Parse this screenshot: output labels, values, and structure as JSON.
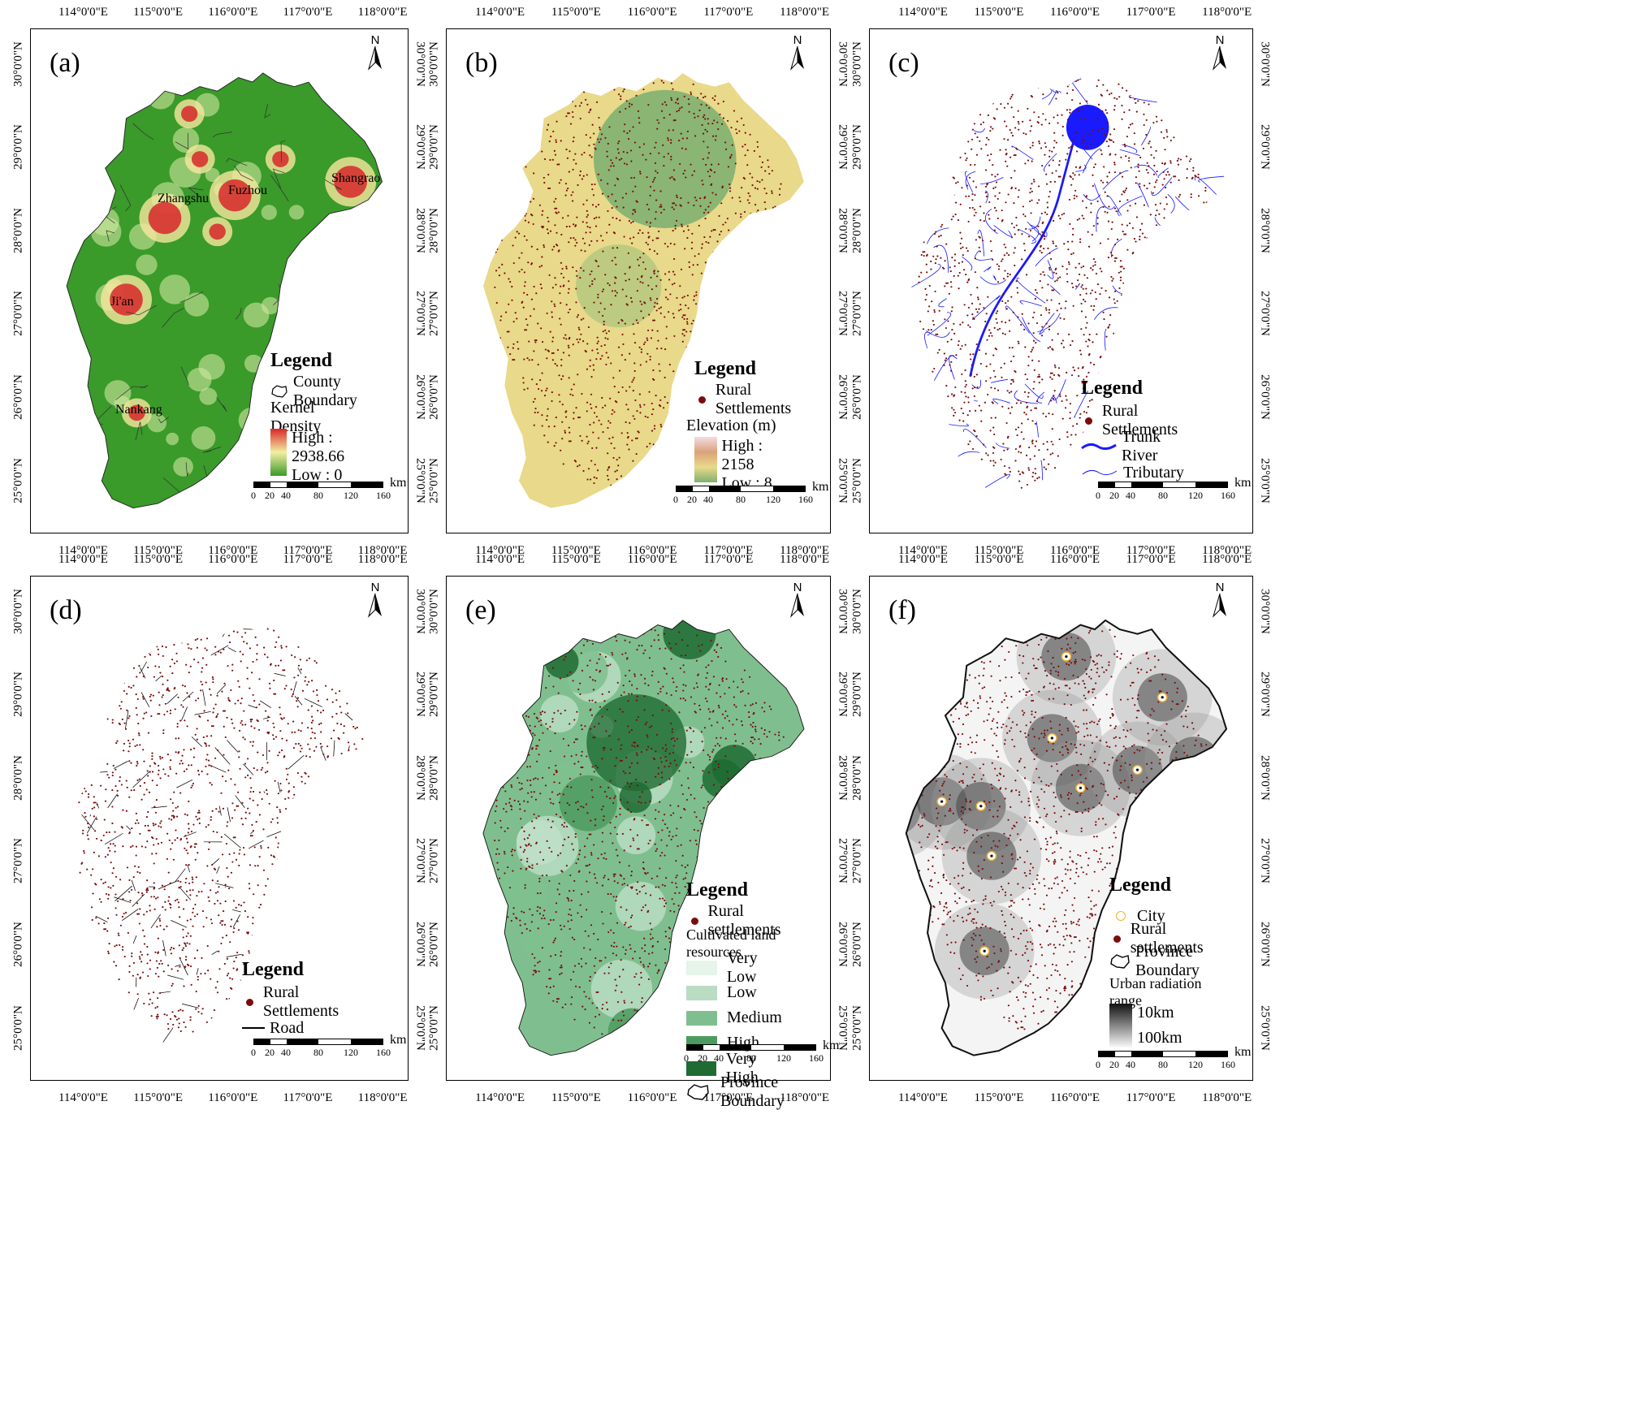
{
  "panels": [
    {
      "label": "(a)",
      "legend": {
        "title": "Legend",
        "items": [
          "County Boundary",
          "Kernel Density"
        ],
        "ramp_high": "High : 2938.66",
        "ramp_low": "Low : 0"
      },
      "places": [
        "Shangrao",
        "Fuzhou",
        "Zhangshu",
        "Ji'an",
        "Nankang"
      ]
    },
    {
      "label": "(b)",
      "legend": {
        "title": "Legend",
        "items": [
          "Rural Settlements",
          "Elevation (m)"
        ],
        "ramp_high": "High : 2158",
        "ramp_low": "Low : 8"
      }
    },
    {
      "label": "(c)",
      "legend": {
        "title": "Legend",
        "items": [
          "Rural Settlements",
          "Trunk River",
          "Tributary"
        ]
      }
    },
    {
      "label": "(d)",
      "legend": {
        "title": "Legend",
        "items": [
          "Rural Settlements",
          "Road"
        ]
      }
    },
    {
      "label": "(e)",
      "legend": {
        "title": "Legend",
        "items": [
          "Rural settlements",
          "Cultivated land resources"
        ],
        "classes": [
          "Very Low",
          "Low",
          "Medium",
          "High",
          "Very High"
        ],
        "boundary": "Province Boundary"
      }
    },
    {
      "label": "(f)",
      "legend": {
        "title": "Legend",
        "items": [
          "City",
          "Rural settlements",
          "Province Boundary",
          "Urban radiation range"
        ],
        "ramp_high": "10km",
        "ramp_low": "100km"
      }
    }
  ],
  "axes": {
    "lon_ticks": [
      "114°0'0\"E",
      "115°0'0\"E",
      "116°0'0\"E",
      "117°0'0\"E",
      "118°0'0\"E"
    ],
    "lat_ticks": [
      "30°0'0\"N",
      "29°0'0\"N",
      "28°0'0\"N",
      "27°0'0\"N",
      "26°0'0\"N",
      "25°0'0\"N"
    ]
  },
  "north_label": "N",
  "scalebar": {
    "ticks": [
      "0",
      "20",
      "40",
      "80",
      "120",
      "160"
    ],
    "unit": "km"
  },
  "colors": {
    "settlement": "#7a0c0c",
    "river": "#1a1aff",
    "road": "#000000",
    "density_high": "#d8282a",
    "density_low": "#3a9a2a",
    "cultivated": [
      "#e6f4ea",
      "#b9dcc3",
      "#7fbf8f",
      "#4c9a5f",
      "#1f6b33"
    ]
  }
}
